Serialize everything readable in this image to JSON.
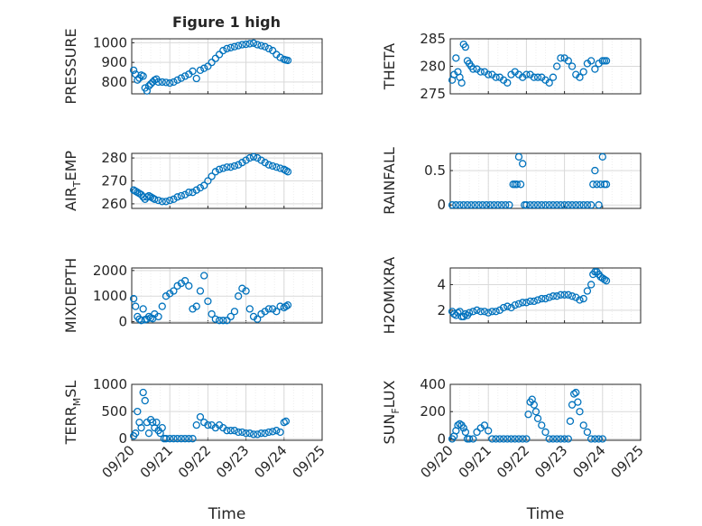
{
  "figure": {
    "title": "Figure 1 high"
  },
  "colors": {
    "marker": "#0072bd",
    "grid_major": "#d9d9d9",
    "grid_minor": "#eeeeee",
    "axis": "#262626"
  },
  "chart_data": [
    {
      "type": "scatter",
      "ylabel": "PRESSURE",
      "ylim": [
        740,
        1020
      ],
      "yticks": [
        "800",
        "900",
        "1000"
      ],
      "xticks": [],
      "xlabel": "",
      "xlim": [
        0,
        5
      ],
      "grid": true,
      "minor_grid": true,
      "x": [
        0.05,
        0.1,
        0.15,
        0.2,
        0.25,
        0.3,
        0.35,
        0.4,
        0.45,
        0.5,
        0.55,
        0.6,
        0.65,
        0.7,
        0.8,
        0.9,
        1.0,
        1.1,
        1.2,
        1.3,
        1.4,
        1.5,
        1.6,
        1.7,
        1.8,
        1.9,
        2.0,
        2.1,
        2.2,
        2.3,
        2.4,
        2.5,
        2.6,
        2.7,
        2.8,
        2.9,
        3.0,
        3.1,
        3.2,
        3.3,
        3.4,
        3.5,
        3.6,
        3.7,
        3.8,
        3.9,
        4.0,
        4.05,
        4.1
      ],
      "y": [
        860,
        840,
        810,
        820,
        835,
        830,
        770,
        755,
        780,
        790,
        800,
        810,
        815,
        800,
        800,
        798,
        795,
        800,
        810,
        820,
        830,
        840,
        855,
        818,
        860,
        870,
        880,
        900,
        920,
        940,
        960,
        970,
        975,
        980,
        985,
        990,
        992,
        995,
        998,
        990,
        985,
        980,
        970,
        960,
        940,
        925,
        915,
        912,
        910
      ]
    },
    {
      "type": "scatter",
      "ylabel": "THETA",
      "ylim": [
        275,
        285
      ],
      "yticks": [
        "275",
        "280",
        "285"
      ],
      "xticks": [],
      "xlabel": "",
      "xlim": [
        0,
        5
      ],
      "grid": true,
      "minor_grid": true,
      "x": [
        0.05,
        0.1,
        0.15,
        0.2,
        0.25,
        0.3,
        0.35,
        0.4,
        0.45,
        0.5,
        0.55,
        0.6,
        0.7,
        0.8,
        0.9,
        1.0,
        1.1,
        1.2,
        1.3,
        1.4,
        1.5,
        1.6,
        1.7,
        1.8,
        1.9,
        2.0,
        2.1,
        2.2,
        2.3,
        2.4,
        2.5,
        2.6,
        2.7,
        2.8,
        2.9,
        3.0,
        3.1,
        3.2,
        3.3,
        3.4,
        3.5,
        3.6,
        3.7,
        3.8,
        3.9,
        4.0,
        4.05,
        4.1
      ],
      "y": [
        277.5,
        278.5,
        281.5,
        279,
        278,
        277,
        284,
        283.5,
        281,
        280.5,
        280,
        279.5,
        279.5,
        279,
        279,
        278.5,
        278.5,
        278,
        278,
        277.5,
        277,
        278.5,
        279,
        278.5,
        278,
        278.5,
        278.5,
        278,
        278,
        278,
        277.5,
        277,
        278,
        280,
        281.5,
        281.5,
        281,
        280,
        278.5,
        278,
        279,
        280.5,
        281,
        279.5,
        280.5,
        281,
        281,
        281
      ]
    },
    {
      "type": "scatter",
      "ylabel_main": "AIR",
      "ylabel_sub": "T",
      "ylabel_rest": "EMP",
      "ylim": [
        258,
        282
      ],
      "yticks": [
        "260",
        "270",
        "280"
      ],
      "xticks": [],
      "xlabel": "",
      "xlim": [
        0,
        5
      ],
      "grid": true,
      "minor_grid": true,
      "x": [
        0.05,
        0.1,
        0.15,
        0.2,
        0.25,
        0.3,
        0.35,
        0.4,
        0.45,
        0.5,
        0.55,
        0.6,
        0.7,
        0.8,
        0.9,
        1.0,
        1.1,
        1.2,
        1.3,
        1.4,
        1.5,
        1.6,
        1.7,
        1.8,
        1.9,
        2.0,
        2.1,
        2.2,
        2.3,
        2.4,
        2.5,
        2.6,
        2.7,
        2.8,
        2.9,
        3.0,
        3.1,
        3.2,
        3.3,
        3.4,
        3.5,
        3.6,
        3.7,
        3.8,
        3.9,
        4.0,
        4.05,
        4.1
      ],
      "y": [
        266,
        265.5,
        265,
        264.5,
        264,
        263,
        262,
        263,
        263.5,
        263,
        262.5,
        262,
        261.5,
        261,
        261,
        261.5,
        262,
        263,
        263.5,
        264,
        265,
        265,
        266,
        267,
        268,
        270,
        272,
        274,
        275,
        275.5,
        276,
        276,
        276.5,
        277,
        278,
        279,
        280,
        280.5,
        280,
        279,
        278,
        277,
        276.5,
        276,
        275.5,
        275,
        274.5,
        274
      ]
    },
    {
      "type": "scatter",
      "ylabel": "RAINFALL",
      "ylim": [
        -0.05,
        0.75
      ],
      "yticks": [
        "0",
        "0.5"
      ],
      "xticks": [],
      "xlabel": "",
      "xlim": [
        0,
        5
      ],
      "grid": true,
      "minor_grid": true,
      "x": [
        0.05,
        0.15,
        0.25,
        0.35,
        0.45,
        0.55,
        0.65,
        0.75,
        0.85,
        0.95,
        1.05,
        1.15,
        1.25,
        1.35,
        1.45,
        1.55,
        1.65,
        1.7,
        1.75,
        1.8,
        1.85,
        1.9,
        1.95,
        2.0,
        2.1,
        2.2,
        2.3,
        2.4,
        2.5,
        2.6,
        2.7,
        2.8,
        2.9,
        3.0,
        3.1,
        3.2,
        3.3,
        3.4,
        3.5,
        3.6,
        3.7,
        3.75,
        3.8,
        3.85,
        3.9,
        3.95,
        4.0,
        4.05,
        4.1
      ],
      "y": [
        0,
        0,
        0,
        0,
        0,
        0,
        0,
        0,
        0,
        0,
        0,
        0,
        0,
        0,
        0,
        0,
        0.3,
        0.3,
        0.3,
        0.7,
        0.3,
        0.6,
        0,
        0,
        0,
        0,
        0,
        0,
        0,
        0,
        0,
        0,
        0,
        0,
        0,
        0,
        0,
        0,
        0,
        0,
        0,
        0.3,
        0.5,
        0.3,
        0,
        0.3,
        0.7,
        0.3,
        0.3
      ]
    },
    {
      "type": "scatter",
      "ylabel": "MIXDEPTH",
      "ylim": [
        -50,
        2100
      ],
      "yticks": [
        "0",
        "1000",
        "2000"
      ],
      "xticks": [],
      "xlabel": "",
      "xlim": [
        0,
        5
      ],
      "grid": true,
      "minor_grid": true,
      "x": [
        0.05,
        0.1,
        0.15,
        0.2,
        0.25,
        0.3,
        0.35,
        0.4,
        0.45,
        0.5,
        0.55,
        0.6,
        0.7,
        0.8,
        0.9,
        1.0,
        1.1,
        1.2,
        1.3,
        1.4,
        1.5,
        1.6,
        1.7,
        1.8,
        1.9,
        2.0,
        2.1,
        2.2,
        2.3,
        2.4,
        2.5,
        2.6,
        2.7,
        2.8,
        2.9,
        3.0,
        3.1,
        3.2,
        3.3,
        3.4,
        3.5,
        3.6,
        3.7,
        3.8,
        3.9,
        4.0,
        4.05,
        4.1
      ],
      "y": [
        900,
        600,
        200,
        100,
        50,
        500,
        80,
        100,
        200,
        150,
        120,
        300,
        200,
        600,
        1000,
        1100,
        1200,
        1400,
        1500,
        1600,
        1400,
        500,
        600,
        1200,
        1800,
        800,
        300,
        100,
        50,
        50,
        50,
        200,
        400,
        1000,
        1300,
        1200,
        500,
        200,
        100,
        300,
        400,
        500,
        500,
        400,
        600,
        550,
        600,
        650
      ]
    },
    {
      "type": "scatter",
      "ylabel": "H2OMIXRA",
      "ylim": [
        1,
        5.3
      ],
      "yticks": [
        "2",
        "4"
      ],
      "xticks": [],
      "xlabel": "",
      "xlim": [
        0,
        5
      ],
      "grid": true,
      "minor_grid": true,
      "x": [
        0.05,
        0.1,
        0.15,
        0.2,
        0.25,
        0.3,
        0.35,
        0.4,
        0.45,
        0.5,
        0.6,
        0.7,
        0.8,
        0.9,
        1.0,
        1.1,
        1.2,
        1.3,
        1.4,
        1.5,
        1.6,
        1.7,
        1.8,
        1.9,
        2.0,
        2.1,
        2.2,
        2.3,
        2.4,
        2.5,
        2.6,
        2.7,
        2.8,
        2.9,
        3.0,
        3.1,
        3.2,
        3.3,
        3.4,
        3.5,
        3.6,
        3.7,
        3.75,
        3.8,
        3.85,
        3.9,
        3.95,
        4.0,
        4.05,
        4.1
      ],
      "y": [
        1.9,
        1.7,
        1.6,
        1.8,
        1.9,
        1.5,
        1.5,
        1.7,
        1.6,
        1.8,
        1.9,
        2.0,
        1.9,
        1.9,
        1.8,
        1.9,
        1.9,
        2.0,
        2.2,
        2.3,
        2.2,
        2.4,
        2.5,
        2.6,
        2.6,
        2.7,
        2.7,
        2.8,
        2.9,
        2.9,
        3.0,
        3.1,
        3.1,
        3.2,
        3.2,
        3.2,
        3.1,
        3.0,
        2.8,
        2.9,
        3.5,
        4.0,
        4.8,
        5.0,
        5.0,
        4.8,
        4.6,
        4.5,
        4.4,
        4.3
      ]
    },
    {
      "type": "scatter",
      "ylabel_main": "TERR",
      "ylabel_sub": "M",
      "ylabel_rest": "SL",
      "ylim": [
        -30,
        1000
      ],
      "yticks": [
        "0",
        "500",
        "1000"
      ],
      "xticks": [
        "09/20",
        "09/21",
        "09/22",
        "09/23",
        "09/24",
        "09/25"
      ],
      "xlabel": "Time",
      "xlim": [
        0,
        5
      ],
      "grid": true,
      "minor_grid": true,
      "x": [
        0.05,
        0.1,
        0.15,
        0.2,
        0.25,
        0.3,
        0.35,
        0.4,
        0.45,
        0.5,
        0.55,
        0.6,
        0.65,
        0.7,
        0.75,
        0.8,
        0.85,
        0.9,
        1.0,
        1.1,
        1.2,
        1.3,
        1.4,
        1.5,
        1.6,
        1.7,
        1.8,
        1.9,
        2.0,
        2.1,
        2.2,
        2.3,
        2.4,
        2.5,
        2.6,
        2.7,
        2.8,
        2.9,
        3.0,
        3.1,
        3.2,
        3.3,
        3.4,
        3.5,
        3.6,
        3.7,
        3.8,
        3.9,
        4.0,
        4.05
      ],
      "y": [
        50,
        100,
        500,
        300,
        200,
        850,
        700,
        300,
        100,
        350,
        300,
        200,
        300,
        150,
        100,
        200,
        0,
        0,
        0,
        0,
        0,
        0,
        0,
        0,
        0,
        250,
        400,
        300,
        250,
        250,
        200,
        250,
        200,
        150,
        150,
        150,
        120,
        120,
        100,
        100,
        80,
        80,
        100,
        100,
        120,
        130,
        150,
        120,
        300,
        320
      ]
    },
    {
      "type": "scatter",
      "ylabel_main": "SUN",
      "ylabel_sub": "F",
      "ylabel_rest": "LUX",
      "ylim": [
        -10,
        400
      ],
      "yticks": [
        "0",
        "200",
        "400"
      ],
      "xticks": [
        "09/20",
        "09/21",
        "09/22",
        "09/23",
        "09/24",
        "09/25"
      ],
      "xlabel": "Time",
      "xlim": [
        0,
        5
      ],
      "grid": true,
      "minor_grid": true,
      "x": [
        0.05,
        0.1,
        0.15,
        0.2,
        0.25,
        0.3,
        0.35,
        0.4,
        0.45,
        0.5,
        0.6,
        0.7,
        0.8,
        0.9,
        1.0,
        1.1,
        1.2,
        1.3,
        1.4,
        1.5,
        1.6,
        1.7,
        1.8,
        1.9,
        2.0,
        2.05,
        2.1,
        2.15,
        2.2,
        2.25,
        2.3,
        2.4,
        2.5,
        2.6,
        2.7,
        2.8,
        2.9,
        3.0,
        3.1,
        3.15,
        3.2,
        3.25,
        3.3,
        3.35,
        3.4,
        3.5,
        3.6,
        3.7,
        3.8,
        3.9,
        4.0
      ],
      "y": [
        0,
        20,
        60,
        100,
        110,
        100,
        80,
        50,
        0,
        0,
        0,
        50,
        80,
        100,
        60,
        0,
        0,
        0,
        0,
        0,
        0,
        0,
        0,
        0,
        0,
        180,
        270,
        290,
        250,
        200,
        150,
        100,
        50,
        0,
        0,
        0,
        0,
        0,
        0,
        130,
        250,
        330,
        340,
        270,
        200,
        100,
        50,
        0,
        0,
        0,
        0
      ]
    }
  ]
}
